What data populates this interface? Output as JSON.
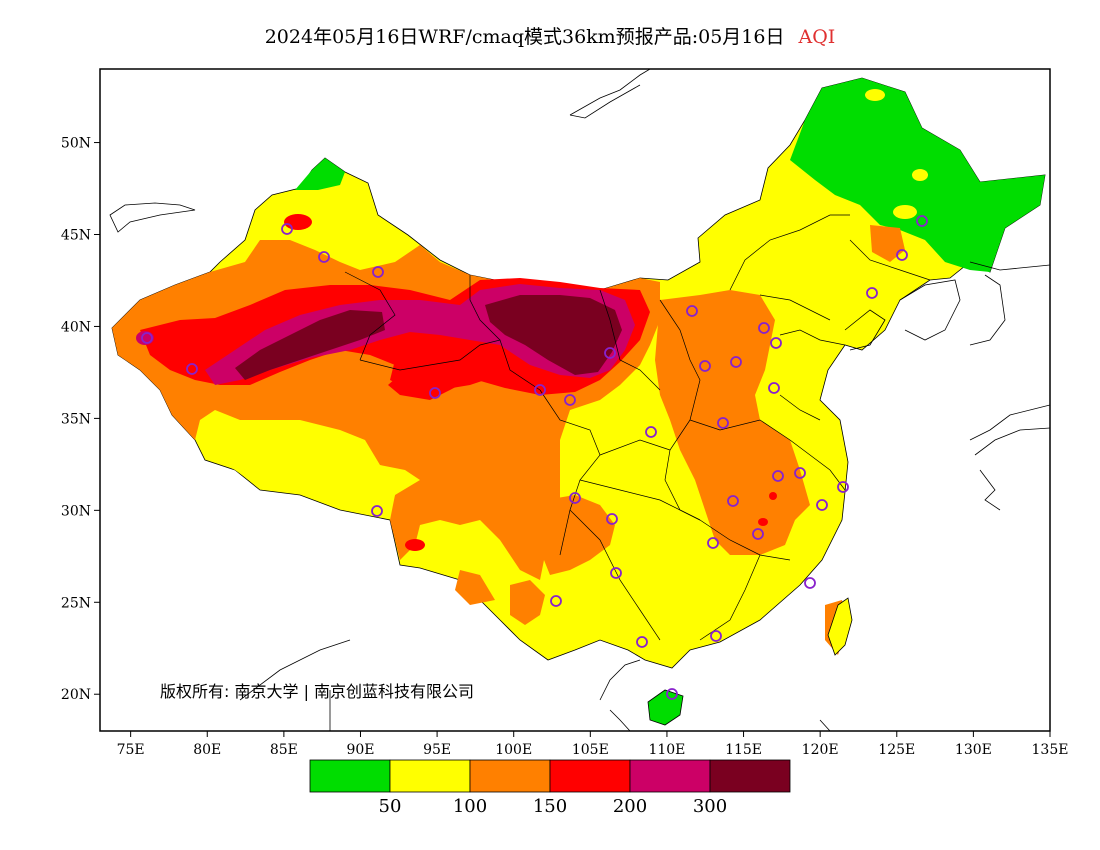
{
  "title": {
    "main": "2024年05月16日WRF/cmaq模式36km预报产品:05月16日",
    "variable": "AQI"
  },
  "axes": {
    "lat_ticks": [
      "50N",
      "45N",
      "40N",
      "35N",
      "30N",
      "25N",
      "20N"
    ],
    "lon_ticks": [
      "75E",
      "80E",
      "85E",
      "90E",
      "95E",
      "100E",
      "105E",
      "110E",
      "115E",
      "120E",
      "125E",
      "130E",
      "135E"
    ]
  },
  "map_extent": {
    "lon": [
      73,
      135
    ],
    "lat": [
      18,
      54
    ]
  },
  "legend": {
    "colors": [
      "#00dd00",
      "#ffff00",
      "#ff8000",
      "#ff0000",
      "#cc0066",
      "#7a0020"
    ],
    "labels": [
      "50",
      "100",
      "150",
      "200",
      "300"
    ]
  },
  "copyright": "版权所有: 南京大学 | 南京创蓝科技有限公司",
  "colors": {
    "good": "#00dd00",
    "moderate": "#ffff00",
    "sensitive": "#ff8000",
    "unhealthy": "#ff0000",
    "very_unhealthy": "#cc0066",
    "hazardous": "#7a0020",
    "station_marker": "#8822cc"
  }
}
